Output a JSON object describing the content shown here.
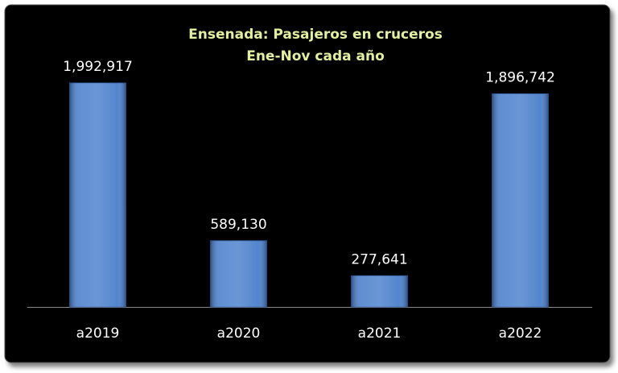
{
  "chart_data": {
    "type": "bar",
    "title": "Ensenada: Pasajeros en cruceros",
    "subtitle": "Ene-Nov cada año",
    "categories": [
      "a2019",
      "a2020",
      "a2021",
      "a2022"
    ],
    "values": [
      1992917,
      589130,
      277641,
      1896742
    ],
    "value_labels": [
      "1,992,917",
      "589,130",
      "277,641",
      "1,896,742"
    ],
    "color": "#4a7fcc",
    "title_color": "#e3efa0"
  }
}
